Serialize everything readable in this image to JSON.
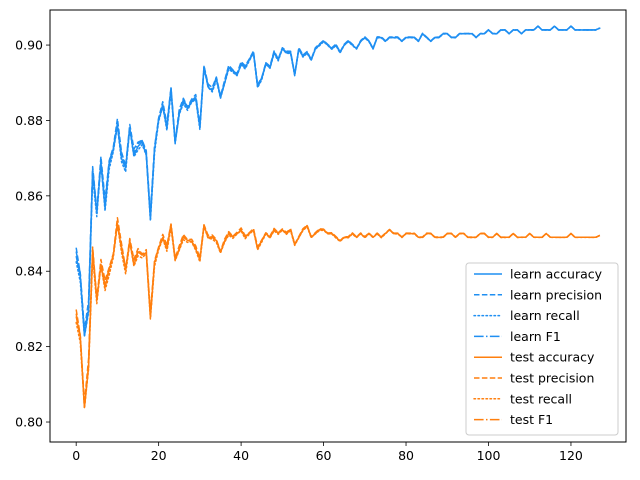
{
  "chart_data": {
    "type": "line",
    "title": "",
    "xlabel": "",
    "ylabel": "",
    "xlim": [
      -6.35,
      133.35
    ],
    "ylim": [
      0.7947,
      0.9093
    ],
    "xticks": [
      0,
      20,
      40,
      60,
      80,
      100,
      120
    ],
    "yticks": [
      0.8,
      0.82,
      0.84,
      0.86,
      0.88,
      0.9
    ],
    "ytick_format": 2,
    "grid": false,
    "legend_position": "lower-right",
    "colors": {
      "learn": "#1f8ff2",
      "test": "#ff7f0e"
    },
    "series": [
      {
        "name": "learn accuracy",
        "group": "learn",
        "style": "solid"
      },
      {
        "name": "learn precision",
        "group": "learn",
        "style": "dashed"
      },
      {
        "name": "learn recall",
        "group": "learn",
        "style": "dotted"
      },
      {
        "name": "learn F1",
        "group": "learn",
        "style": "dashdot"
      },
      {
        "name": "test accuracy",
        "group": "test",
        "style": "solid"
      },
      {
        "name": "test precision",
        "group": "test",
        "style": "dashed"
      },
      {
        "name": "test recall",
        "group": "test",
        "style": "dotted"
      },
      {
        "name": "test F1",
        "group": "test",
        "style": "dashdot"
      }
    ],
    "x": [
      0,
      1,
      2,
      3,
      4,
      5,
      6,
      7,
      8,
      9,
      10,
      11,
      12,
      13,
      14,
      15,
      16,
      17,
      18,
      19,
      20,
      21,
      22,
      23,
      24,
      25,
      26,
      27,
      28,
      29,
      30,
      31,
      32,
      33,
      34,
      35,
      36,
      37,
      38,
      39,
      40,
      41,
      42,
      43,
      44,
      45,
      46,
      47,
      48,
      49,
      50,
      51,
      52,
      53,
      54,
      55,
      56,
      57,
      58,
      59,
      60,
      61,
      62,
      63,
      64,
      65,
      66,
      67,
      68,
      69,
      70,
      71,
      72,
      73,
      74,
      75,
      76,
      77,
      78,
      79,
      80,
      81,
      82,
      83,
      84,
      85,
      86,
      87,
      88,
      89,
      90,
      91,
      92,
      93,
      94,
      95,
      96,
      97,
      98,
      99,
      100,
      101,
      102,
      103,
      104,
      105,
      106,
      107,
      108,
      109,
      110,
      111,
      112,
      113,
      114,
      115,
      116,
      117,
      118,
      119,
      120,
      121,
      122,
      123,
      124,
      125,
      126,
      127
    ],
    "learn_values": [
      0.844,
      0.838,
      0.823,
      0.83,
      0.866,
      0.855,
      0.869,
      0.857,
      0.868,
      0.872,
      0.879,
      0.87,
      0.867,
      0.878,
      0.871,
      0.873,
      0.874,
      0.871,
      0.854,
      0.872,
      0.88,
      0.884,
      0.878,
      0.888,
      0.874,
      0.882,
      0.885,
      0.883,
      0.885,
      0.886,
      0.878,
      0.894,
      0.889,
      0.888,
      0.891,
      0.886,
      0.89,
      0.894,
      0.893,
      0.892,
      0.895,
      0.894,
      0.896,
      0.898,
      0.889,
      0.891,
      0.895,
      0.894,
      0.898,
      0.896,
      0.899,
      0.898,
      0.898,
      0.892,
      0.899,
      0.897,
      0.898,
      0.896,
      0.899,
      0.9,
      0.901,
      0.9,
      0.899,
      0.9,
      0.898,
      0.9,
      0.901,
      0.9,
      0.899,
      0.901,
      0.902,
      0.901,
      0.899,
      0.902,
      0.902,
      0.901,
      0.902,
      0.902,
      0.902,
      0.901,
      0.902,
      0.902,
      0.902,
      0.901,
      0.903,
      0.902,
      0.901,
      0.902,
      0.902,
      0.903,
      0.903,
      0.902,
      0.902,
      0.903,
      0.903,
      0.903,
      0.903,
      0.902,
      0.903,
      0.903,
      0.904,
      0.903,
      0.903,
      0.904,
      0.904,
      0.903,
      0.904,
      0.904,
      0.903,
      0.904,
      0.904,
      0.904,
      0.905,
      0.904,
      0.904,
      0.904,
      0.905,
      0.904,
      0.904,
      0.904,
      0.905,
      0.904,
      0.904,
      0.904,
      0.904,
      0.904,
      0.904,
      0.9045
    ],
    "test_values": [
      0.828,
      0.822,
      0.804,
      0.815,
      0.845,
      0.832,
      0.842,
      0.836,
      0.84,
      0.844,
      0.853,
      0.846,
      0.84,
      0.848,
      0.842,
      0.845,
      0.844,
      0.845,
      0.828,
      0.842,
      0.846,
      0.849,
      0.846,
      0.852,
      0.843,
      0.846,
      0.849,
      0.848,
      0.848,
      0.846,
      0.843,
      0.852,
      0.849,
      0.849,
      0.848,
      0.845,
      0.848,
      0.85,
      0.849,
      0.85,
      0.851,
      0.849,
      0.85,
      0.851,
      0.846,
      0.848,
      0.85,
      0.849,
      0.851,
      0.85,
      0.851,
      0.85,
      0.851,
      0.847,
      0.849,
      0.851,
      0.852,
      0.849,
      0.85,
      0.851,
      0.851,
      0.85,
      0.85,
      0.849,
      0.848,
      0.849,
      0.849,
      0.85,
      0.849,
      0.85,
      0.849,
      0.85,
      0.849,
      0.85,
      0.849,
      0.85,
      0.851,
      0.85,
      0.85,
      0.849,
      0.85,
      0.85,
      0.85,
      0.849,
      0.849,
      0.85,
      0.85,
      0.849,
      0.849,
      0.849,
      0.85,
      0.85,
      0.849,
      0.85,
      0.85,
      0.849,
      0.849,
      0.849,
      0.85,
      0.85,
      0.849,
      0.849,
      0.85,
      0.849,
      0.849,
      0.849,
      0.85,
      0.849,
      0.849,
      0.849,
      0.85,
      0.849,
      0.849,
      0.849,
      0.85,
      0.849,
      0.849,
      0.849,
      0.849,
      0.849,
      0.85,
      0.849,
      0.849,
      0.849,
      0.849,
      0.849,
      0.849,
      0.8495
    ]
  }
}
